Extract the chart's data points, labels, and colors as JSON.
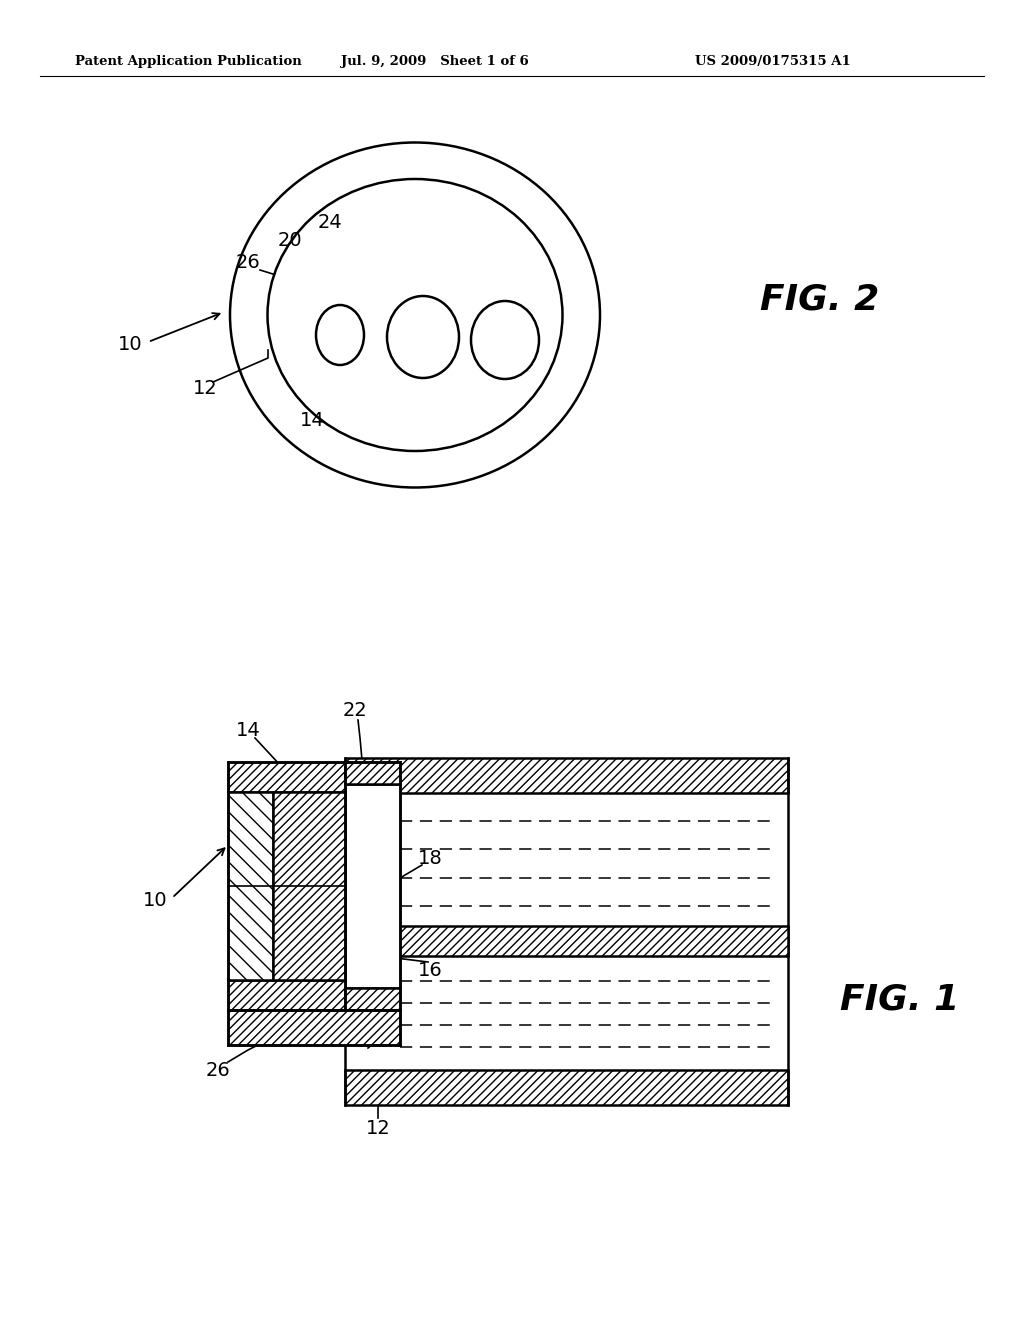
{
  "bg_color": "#ffffff",
  "header_left": "Patent Application Publication",
  "header_mid": "Jul. 9, 2009   Sheet 1 of 6",
  "header_right": "US 2009/0175315 A1",
  "fig2_label": "FIG. 2",
  "fig1_label": "FIG. 1"
}
